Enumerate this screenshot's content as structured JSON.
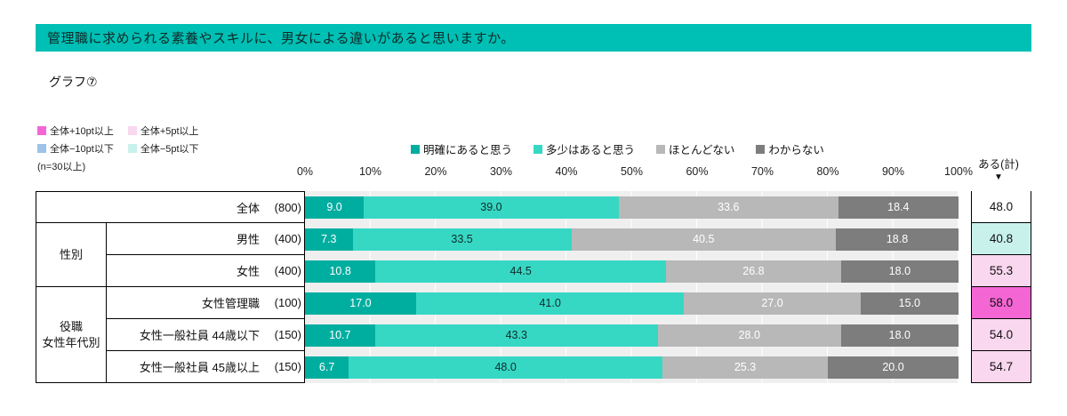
{
  "header": {
    "title": "管理職に求められる素養やスキルに、男女による違いがあると思いますか。"
  },
  "graph_label": "グラフ⑦",
  "colors": {
    "header_bg": "#00BFB4",
    "plot_bg": "#EFEFEF"
  },
  "threshold_legend": {
    "items": [
      {
        "label": "全体+10pt以上",
        "color": "#F466D4"
      },
      {
        "label": "全体+5pt以上",
        "color": "#F9D7EE"
      },
      {
        "label": "全体−10pt以下",
        "color": "#9DC3E6"
      },
      {
        "label": "全体−5pt以下",
        "color": "#C9F1EC"
      }
    ],
    "note": "(n=30以上)"
  },
  "chart_data": {
    "type": "bar",
    "stacked": true,
    "orientation": "horizontal",
    "xlim": [
      0,
      100
    ],
    "x_ticks": [
      "0%",
      "10%",
      "20%",
      "30%",
      "40%",
      "50%",
      "60%",
      "70%",
      "80%",
      "90%",
      "100%"
    ],
    "series": [
      {
        "name": "明確にあると思う",
        "color": "#00AEA0"
      },
      {
        "name": "多少はあると思う",
        "color": "#36D8C4"
      },
      {
        "name": "ほとんどない",
        "color": "#B8B8B8"
      },
      {
        "name": "わからない",
        "color": "#7D7D7D"
      }
    ],
    "total_header": "ある(計)",
    "total_arrow": "▼",
    "group_cells": [
      {
        "lines": [
          "性別"
        ]
      },
      {
        "lines": [
          "役職",
          "女性年代別"
        ]
      }
    ],
    "rows": [
      {
        "group": "",
        "label": "全体",
        "n": "(800)",
        "values": [
          "9.0",
          "39.0",
          "33.6",
          "18.4"
        ],
        "total": "48.0",
        "total_color": "#FFFFFF"
      },
      {
        "group": "性別",
        "label": "男性",
        "n": "(400)",
        "values": [
          "7.3",
          "33.5",
          "40.5",
          "18.8"
        ],
        "total": "40.8",
        "total_color": "#C9F1EC"
      },
      {
        "group": "性別",
        "label": "女性",
        "n": "(400)",
        "values": [
          "10.8",
          "44.5",
          "26.8",
          "18.0"
        ],
        "total": "55.3",
        "total_color": "#F9D7EE"
      },
      {
        "group": "役職女性年代別",
        "label": "女性管理職",
        "n": "(100)",
        "values": [
          "17.0",
          "41.0",
          "27.0",
          "15.0"
        ],
        "total": "58.0",
        "total_color": "#F466D4"
      },
      {
        "group": "役職女性年代別",
        "label": "女性一般社員 44歳以下",
        "n": "(150)",
        "values": [
          "10.7",
          "43.3",
          "28.0",
          "18.0"
        ],
        "total": "54.0",
        "total_color": "#F9D7EE"
      },
      {
        "group": "役職女性年代別",
        "label": "女性一般社員 45歳以上",
        "n": "(150)",
        "values": [
          "6.7",
          "48.0",
          "25.3",
          "20.0"
        ],
        "total": "54.7",
        "total_color": "#F9D7EE"
      }
    ]
  }
}
